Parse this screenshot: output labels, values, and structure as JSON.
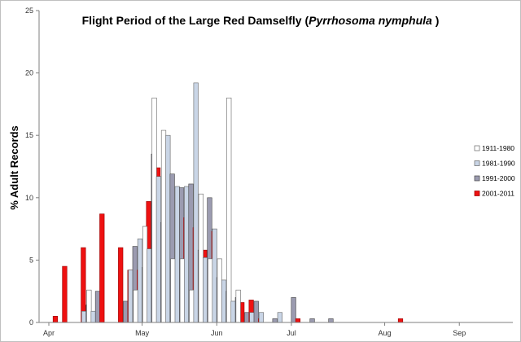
{
  "chart_data": {
    "type": "bar",
    "title": {
      "prefix": "Flight Period of the Large Red Damselfly (",
      "italic": "Pyrrhosoma nymphula",
      "suffix": " )"
    },
    "xlabel": "",
    "ylabel": "% Adult Records",
    "ylim": [
      0,
      25
    ],
    "yticks": [
      0,
      5,
      10,
      15,
      20,
      25
    ],
    "grid": false,
    "legend_position": "right",
    "x_period_count": 38,
    "x_ticks": [
      {
        "label": "Apr",
        "position": 0
      },
      {
        "label": "May",
        "position": 10
      },
      {
        "label": "Jun",
        "position": 18
      },
      {
        "label": "Jul",
        "position": 26
      },
      {
        "label": "Aug",
        "position": 36
      },
      {
        "label": "Sep",
        "position": 44
      }
    ],
    "series": [
      {
        "name": "1911-1980",
        "color": "#ffffff",
        "stroke": "#666666",
        "values": [
          0,
          0,
          0,
          0,
          0,
          2.6,
          0,
          0,
          0,
          0,
          2.6,
          7.7,
          18,
          15.4,
          5.1,
          5.1,
          2.6,
          10.3,
          5.1,
          5.1,
          18,
          2.6,
          0,
          0,
          0,
          0,
          0,
          0,
          0,
          0,
          0,
          0,
          0,
          0,
          0,
          0,
          0,
          0
        ]
      },
      {
        "name": "1981-1990",
        "color": "#c9d5e6",
        "stroke": "#666666",
        "values": [
          0,
          0,
          0,
          0,
          0.9,
          0.9,
          0,
          0,
          0,
          4.2,
          6.7,
          5.9,
          11.7,
          15,
          10.9,
          10.9,
          19.2,
          5.2,
          7.5,
          3.4,
          1.7,
          0,
          0.8,
          0.8,
          0,
          0.8,
          0,
          0,
          0,
          0,
          0,
          0,
          0,
          0,
          0,
          0,
          0,
          0
        ]
      },
      {
        "name": "1991-2000",
        "color": "#9b9bb0",
        "stroke": "#444444",
        "values": [
          0,
          0,
          0,
          0,
          1.4,
          2.5,
          0,
          0,
          1.7,
          6.1,
          4.4,
          13.5,
          8,
          11.9,
          10.8,
          11.1,
          5.8,
          10,
          3.6,
          2.5,
          2,
          0.8,
          1.7,
          0,
          0.3,
          0,
          2,
          0,
          0.3,
          0,
          0.3,
          0,
          0,
          0,
          0,
          0,
          0,
          0
        ]
      },
      {
        "name": "2001-2011",
        "color": "#ee1111",
        "stroke": "#990000",
        "values": [
          0.5,
          4.5,
          0,
          6,
          0,
          8.7,
          0,
          6,
          4.2,
          4.2,
          9.7,
          12.4,
          7.4,
          3.9,
          8.4,
          7.6,
          5.8,
          7.3,
          2.1,
          1.3,
          1.6,
          1.8,
          0.3,
          0,
          0,
          0,
          0.3,
          0,
          0,
          0,
          0,
          0,
          0,
          0,
          0,
          0,
          0,
          0.3
        ]
      }
    ]
  }
}
